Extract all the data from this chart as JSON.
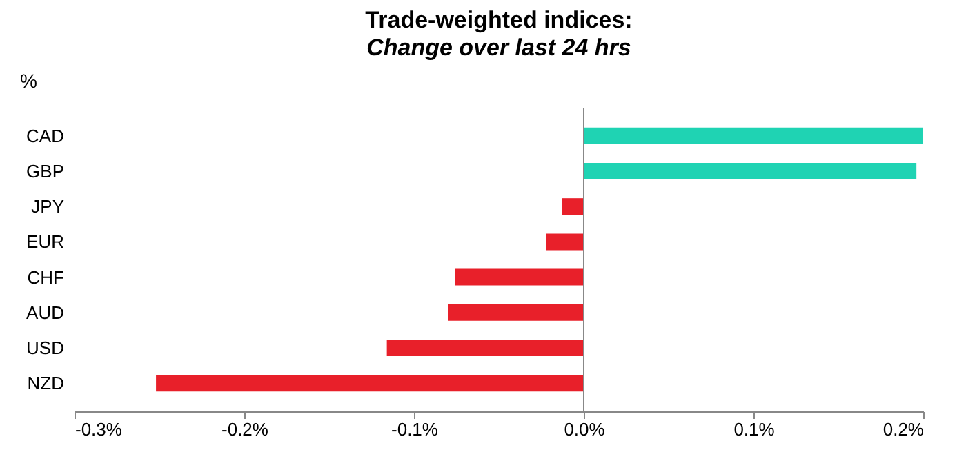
{
  "chart_data": {
    "type": "bar",
    "orientation": "horizontal",
    "title": "Trade-weighted indices:",
    "subtitle": "Change over last 24 hrs",
    "ylabel": "%",
    "categories": [
      "CAD",
      "GBP",
      "JPY",
      "EUR",
      "CHF",
      "AUD",
      "USD",
      "NZD"
    ],
    "values": [
      0.2,
      0.196,
      -0.013,
      -0.022,
      -0.076,
      -0.08,
      -0.116,
      -0.252
    ],
    "colors": [
      "#1fd3b3",
      "#1fd3b3",
      "#e8202a",
      "#e8202a",
      "#e8202a",
      "#e8202a",
      "#e8202a",
      "#e8202a"
    ],
    "xlim": [
      -0.3,
      0.2
    ],
    "xticks": [
      {
        "value": -0.3,
        "label": "-0.3%"
      },
      {
        "value": -0.2,
        "label": "-0.2%"
      },
      {
        "value": -0.1,
        "label": "-0.1%"
      },
      {
        "value": 0,
        "label": "0.0%"
      },
      {
        "value": 0.1,
        "label": "0.1%"
      },
      {
        "value": 0.2,
        "label": "0.2%"
      }
    ],
    "tick_labels": true
  }
}
